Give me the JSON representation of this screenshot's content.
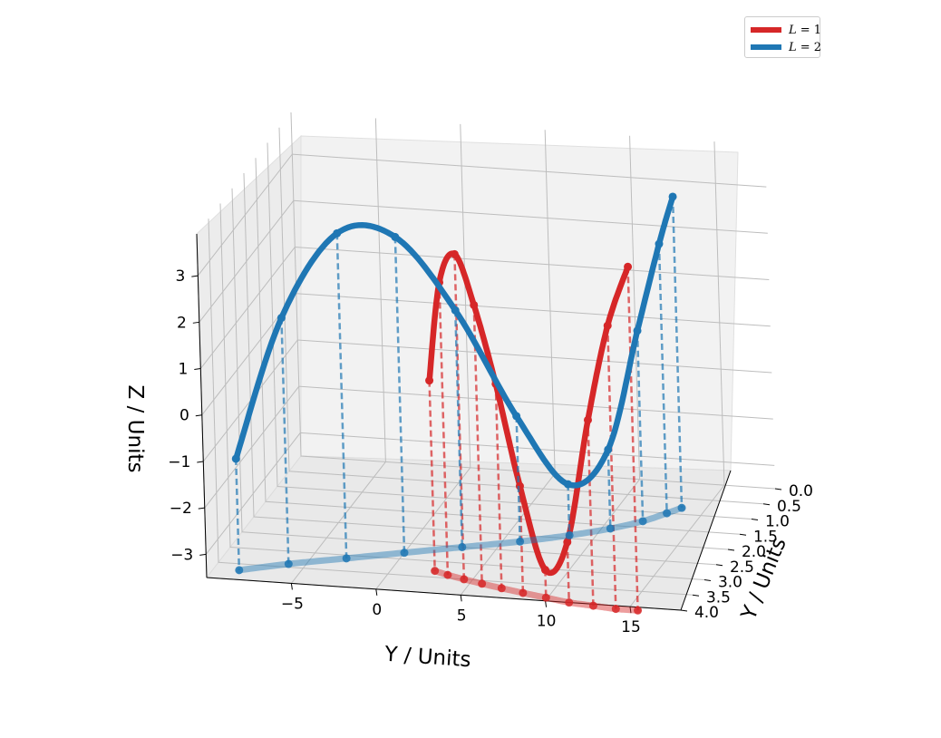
{
  "chart_data": {
    "type": "line",
    "projection": "3d",
    "axes": {
      "x": {
        "label": "Y / Units",
        "ticks": [
          -5,
          0,
          5,
          10,
          15
        ],
        "range": [
          -10,
          18
        ]
      },
      "y": {
        "label": "Y / Units",
        "ticks": [
          "0.0",
          "0.5",
          "1.0",
          "1.5",
          "2.0",
          "2.5",
          "3.0",
          "3.5",
          "4.0"
        ],
        "range": [
          0,
          4
        ]
      },
      "z": {
        "label": "Z / Units",
        "ticks": [
          3,
          2,
          1,
          0,
          -1,
          -2,
          -3
        ],
        "range": [
          -3.5,
          3.9
        ]
      }
    },
    "grid": true,
    "legend_position": "top-right",
    "series": [
      {
        "name": "L = 1",
        "legend_prefix": "L",
        "legend_suffix": " = 1",
        "color": "#d62728",
        "x": [
          2.5,
          3.4,
          4.5,
          5.7,
          7.0,
          8.4,
          9.9,
          11.4,
          12.9,
          14.3,
          15.6
        ],
        "y": [
          3.3,
          3.4,
          3.5,
          3.6,
          3.7,
          3.8,
          3.9,
          4.0,
          4.05,
          4.1,
          4.1
        ],
        "z": [
          0.6,
          2.8,
          3.5,
          2.5,
          0.9,
          -1.2,
          -2.9,
          -2.2,
          0.5,
          2.6,
          3.9
        ]
      },
      {
        "name": "L = 2",
        "legend_prefix": "L",
        "legend_suffix": " = 2",
        "color": "#1f77b4",
        "x": [
          -8.5,
          -6.0,
          -3.0,
          0.0,
          3.0,
          6.0,
          8.5,
          10.5,
          12.0,
          13.0,
          13.6
        ],
        "y": [
          3.7,
          3.4,
          3.1,
          2.8,
          2.5,
          2.2,
          1.9,
          1.6,
          1.3,
          1.0,
          0.8
        ],
        "z": [
          -1.1,
          1.8,
          3.5,
          3.3,
          1.6,
          -0.8,
          -2.4,
          -1.8,
          0.6,
          2.3,
          3.2
        ]
      }
    ]
  }
}
